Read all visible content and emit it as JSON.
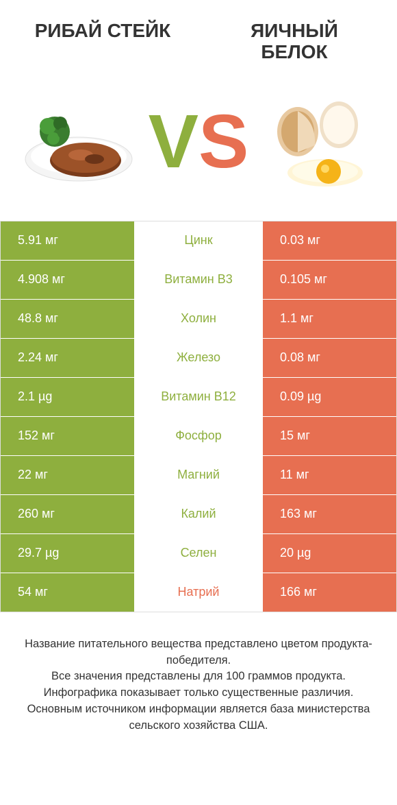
{
  "header": {
    "left_title": "РИБАЙ СТЕЙК",
    "right_title": "ЯИЧНЫЙ БЕЛОК"
  },
  "vs": {
    "v": "V",
    "s": "S"
  },
  "colors": {
    "green": "#8eaf3e",
    "orange": "#e76f51",
    "border": "#dddddd",
    "bg": "#ffffff",
    "text": "#333333"
  },
  "table": {
    "rows": [
      {
        "left": "5.91 мг",
        "nutrient": "Цинк",
        "right": "0.03 мг",
        "winner": "left"
      },
      {
        "left": "4.908 мг",
        "nutrient": "Витамин B3",
        "right": "0.105 мг",
        "winner": "left"
      },
      {
        "left": "48.8 мг",
        "nutrient": "Холин",
        "right": "1.1 мг",
        "winner": "left"
      },
      {
        "left": "2.24 мг",
        "nutrient": "Железо",
        "right": "0.08 мг",
        "winner": "left"
      },
      {
        "left": "2.1 µg",
        "nutrient": "Витамин B12",
        "right": "0.09 µg",
        "winner": "left"
      },
      {
        "left": "152 мг",
        "nutrient": "Фосфор",
        "right": "15 мг",
        "winner": "left"
      },
      {
        "left": "22 мг",
        "nutrient": "Магний",
        "right": "11 мг",
        "winner": "left"
      },
      {
        "left": "260 мг",
        "nutrient": "Калий",
        "right": "163 мг",
        "winner": "left"
      },
      {
        "left": "29.7 µg",
        "nutrient": "Селен",
        "right": "20 µg",
        "winner": "left"
      },
      {
        "left": "54 мг",
        "nutrient": "Натрий",
        "right": "166 мг",
        "winner": "right"
      }
    ]
  },
  "footer": {
    "line1": "Название питательного вещества представлено цветом продукта-победителя.",
    "line2": "Все значения представлены для 100 граммов продукта.",
    "line3": "Инфографика показывает только существенные различия.",
    "line4": "Основным источником информации является база министерства сельского хозяйства США."
  }
}
